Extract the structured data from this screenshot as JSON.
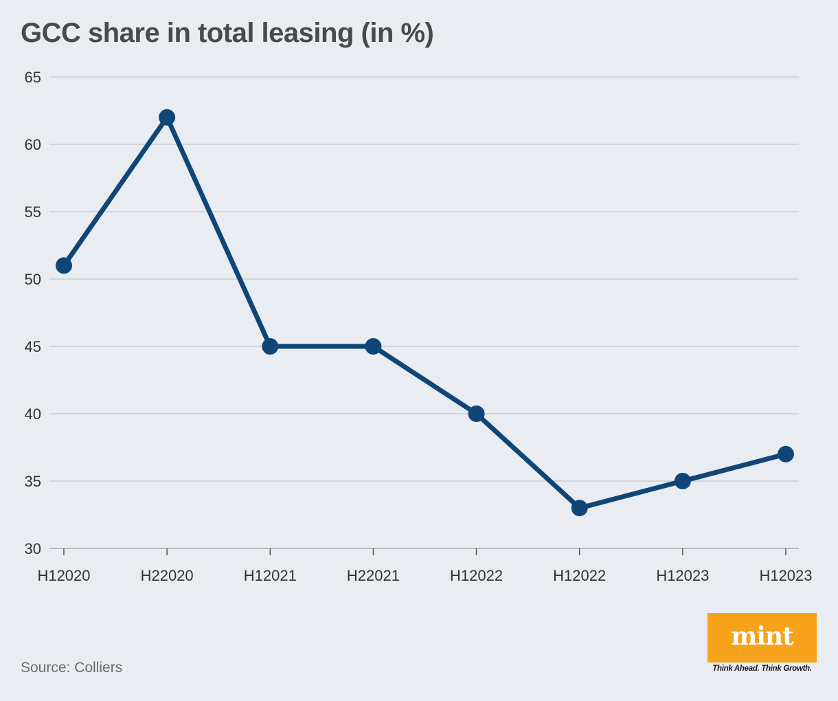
{
  "chart_data": {
    "type": "line",
    "title": "GCC share in total leasing (in %)",
    "categories": [
      "H12020",
      "H22020",
      "H12021",
      "H22021",
      "H12022",
      "H12022",
      "H12023",
      "H12023"
    ],
    "series": [
      {
        "values": [
          51,
          62,
          45,
          45,
          40,
          33,
          35,
          37
        ]
      }
    ],
    "ylim": [
      30,
      65
    ],
    "yticks": [
      30,
      35,
      40,
      45,
      50,
      55,
      60,
      65
    ],
    "grid": true,
    "xlabel": "",
    "ylabel": ""
  },
  "source": "Source: Colliers",
  "brand": {
    "name": "mint",
    "tagline": "Think Ahead. Think Growth."
  },
  "colors": {
    "line": "#0f4677",
    "grid": "#c9ccd1",
    "background": "#e9ecf1",
    "brand": "#f7a21b"
  }
}
